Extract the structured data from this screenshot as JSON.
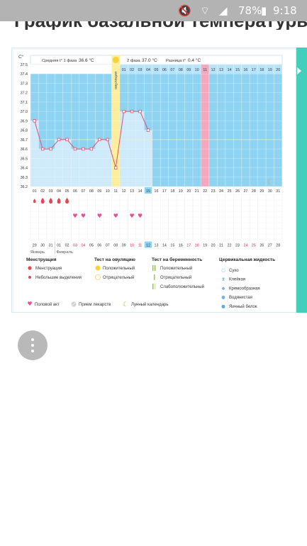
{
  "status_bar": {
    "battery": "78%",
    "time": "9:18",
    "icons": [
      "mute-icon",
      "wifi-icon",
      "signal-icon",
      "battery-icon"
    ]
  },
  "page_heading": "График базальной температуры",
  "chart_panel": {
    "summary": {
      "phase1_label": "Средняя t° 1 фаза",
      "phase1_value": "36.6 °C",
      "ovulation_label": "овуляция",
      "phase2_label": "2 фаза",
      "phase2_value": "37.0 °C",
      "diff_label": "Разница t°",
      "diff_value": "0.4 °C"
    },
    "y_unit": "C°",
    "cycle_days": [
      "01",
      "02",
      "03",
      "04",
      "05",
      "06",
      "07",
      "08",
      "09",
      "10",
      "11",
      "12",
      "13",
      "14",
      "15",
      "16",
      "17",
      "18",
      "19",
      "20",
      "21",
      "22",
      "23",
      "24",
      "25",
      "26",
      "27",
      "28",
      "29",
      "30",
      "31"
    ],
    "phase2_day_labels": [
      "01",
      "02",
      "03",
      "04",
      "05",
      "06",
      "07",
      "08",
      "09",
      "10",
      "11",
      "12",
      "13",
      "14",
      "15",
      "16",
      "17",
      "18",
      "19",
      "20"
    ],
    "calendar_dates": [
      "29",
      "30",
      "31",
      "01",
      "02",
      "03",
      "04",
      "05",
      "06",
      "07",
      "08",
      "09",
      "10",
      "11",
      "12",
      "13",
      "14",
      "15",
      "16",
      "17",
      "18",
      "19",
      "20",
      "21",
      "22",
      "23",
      "24",
      "25",
      "26",
      "27",
      "28"
    ],
    "month_labels": [
      "Январь",
      "Февраль"
    ],
    "current_day": "15",
    "current_date": "12"
  },
  "chart_data": {
    "type": "line",
    "y_axis_ticks": [
      "37.5",
      "37.4",
      "37.3",
      "37.2",
      "37.1",
      "37.0",
      "36.9",
      "36.8",
      "36.7",
      "36.6",
      "36.5",
      "36.4",
      "36.3",
      "36.2"
    ],
    "ylim": [
      36.2,
      37.5
    ],
    "x": [
      1,
      2,
      3,
      4,
      5,
      6,
      7,
      8,
      9,
      10,
      11,
      12,
      13,
      14,
      15
    ],
    "series": [
      {
        "values": [
          36.9,
          36.6,
          36.6,
          36.7,
          36.7,
          36.6,
          36.6,
          36.6,
          36.7,
          36.7,
          36.4,
          37.0,
          37.0,
          37.0,
          36.8
        ]
      }
    ],
    "coverline": 36.7,
    "ovulation_day": 11,
    "highlight_day": 22,
    "period_days": [
      1,
      2,
      3,
      4,
      5
    ],
    "light_period_day": 1,
    "intercourse_days": [
      6,
      7,
      9,
      11,
      13,
      14
    ],
    "moon_day": 30
  },
  "legend": {
    "menstruation_title": "Менструация",
    "menstruation": "Менструация",
    "spotting": "Небольшие выделения",
    "ovulation_test_title": "Тест на овуляцию",
    "ov_positive": "Положительный",
    "ov_negative": "Отрицательный",
    "pregnancy_test_title": "Тест на беременность",
    "pr_positive": "Положительный",
    "pr_negative": "Отрицательный",
    "pr_weak": "Слабоположительный",
    "cervical_title": "Цервикальная жидкость",
    "cf_dry": "Сухо",
    "cf_sticky": "Клейкая",
    "cf_creamy": "Кремообразная",
    "cf_watery": "Водянистая",
    "cf_eggwhite": "Яичный белок",
    "intercourse": "Половой акт",
    "medication": "Прием лекарств",
    "lunar": "Лунный календарь"
  },
  "colors": {
    "chart_blue": "#8fd3f2",
    "fill_blue": "#cfeafb",
    "ovulation_yellow": "#fcee9c",
    "highlight_pink": "#f2a9bd",
    "line_pink": "#e0506f",
    "accent_teal": "#44cfbd",
    "drop_red": "#e64552",
    "heart_pink": "#ee4b99",
    "moon_orange": "#f2a423"
  }
}
